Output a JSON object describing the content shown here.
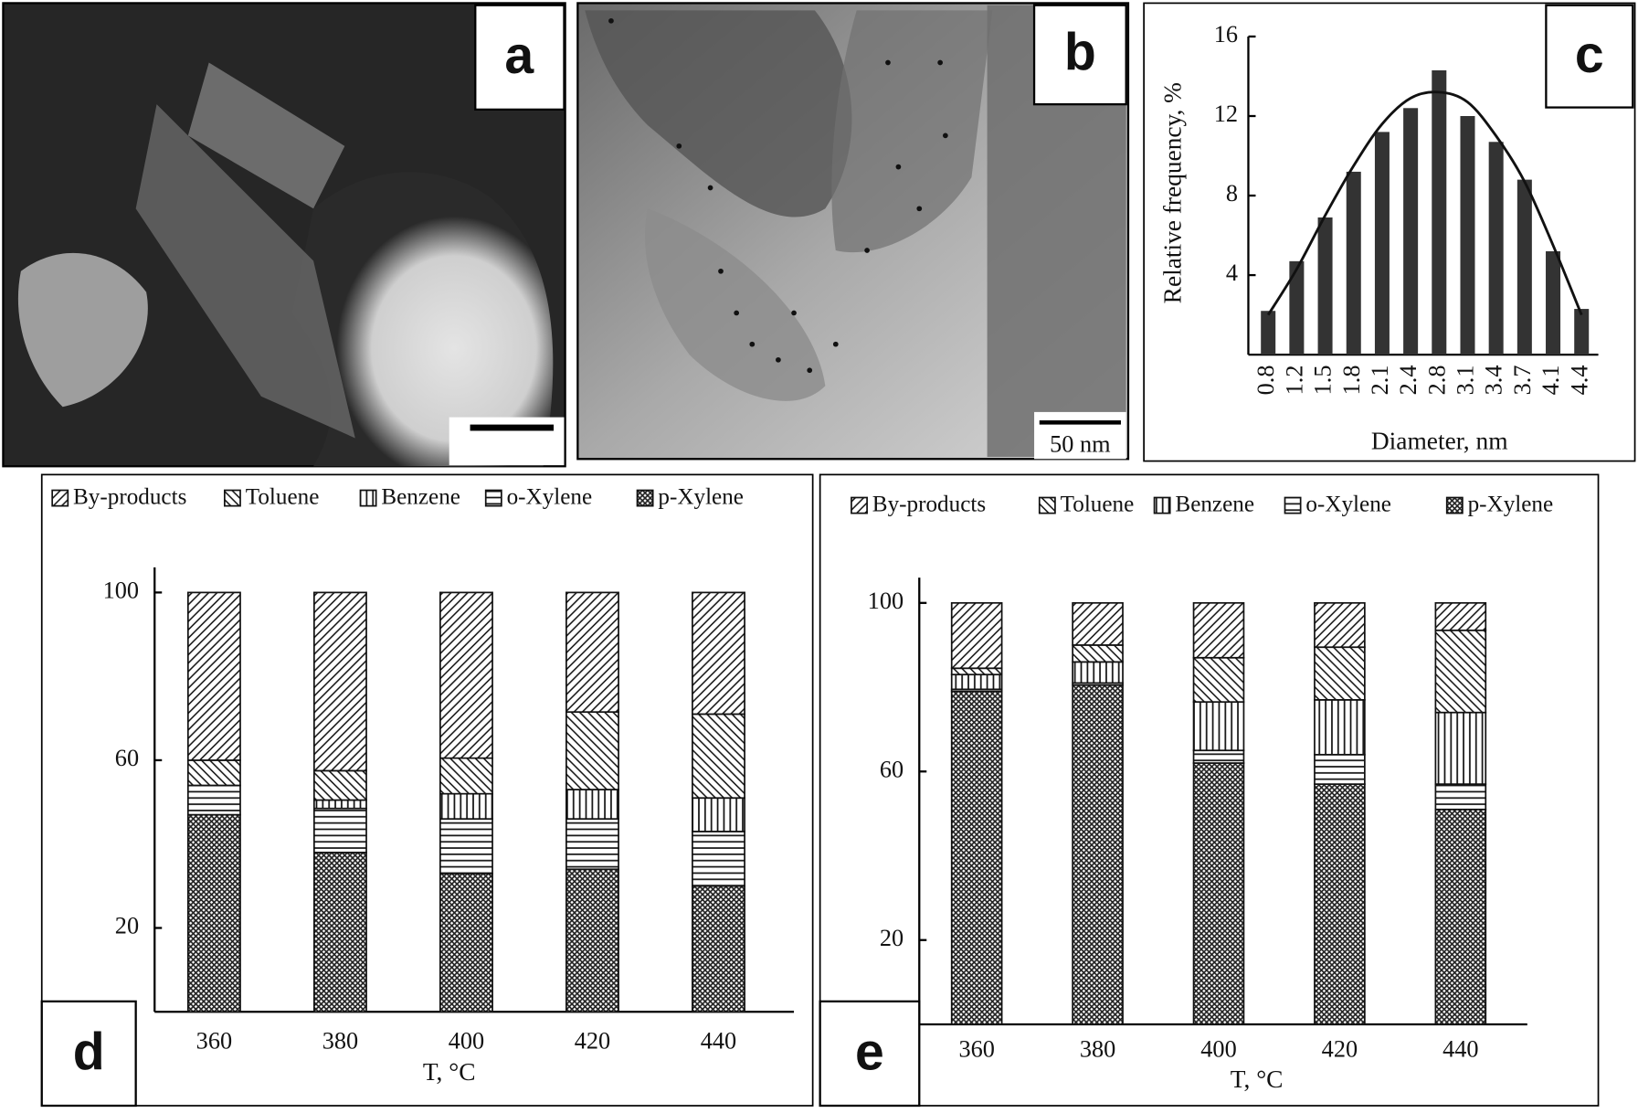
{
  "panels": [
    {
      "label": "a"
    },
    {
      "label": "b",
      "scale_bar": "50 nm"
    }
  ],
  "chart_data": [
    {
      "type": "bar",
      "panel_label": "c",
      "ylabel": "Relative frequency, %",
      "xlabel": "Diameter, nm",
      "categories": [
        "0.8",
        "1.2",
        "1.5",
        "1.8",
        "2.1",
        "2.4",
        "2.8",
        "3.1",
        "3.4",
        "3.7",
        "4.1",
        "4.4"
      ],
      "values": [
        2.2,
        4.7,
        6.9,
        9.2,
        11.2,
        12.4,
        14.3,
        12.0,
        10.7,
        8.8,
        5.2,
        2.3
      ],
      "color": "#333333",
      "fit": {
        "values": [
          2.0,
          4.3,
          7.0,
          9.5,
          11.6,
          12.9,
          13.2,
          12.7,
          11.0,
          8.7,
          5.5,
          2.0
        ],
        "color": "#111111"
      },
      "ylim": [
        0,
        16
      ],
      "yticks": [
        4,
        8,
        12,
        16
      ]
    },
    {
      "type": "stacked_bar",
      "panel_label": "d",
      "xlabel": "T, °C",
      "categories": [
        "360",
        "380",
        "400",
        "420",
        "440"
      ],
      "ylim": [
        0,
        106
      ],
      "yticks": [
        20,
        60,
        100
      ],
      "series": [
        {
          "name": "By-products",
          "pattern": "diagonal",
          "values": [
            40,
            42.5,
            39.5,
            28.5,
            29
          ]
        },
        {
          "name": "Toluene",
          "pattern": "backdiagonal",
          "values": [
            6,
            7,
            8.5,
            18.5,
            20
          ]
        },
        {
          "name": "Benzene",
          "pattern": "vertical",
          "values": [
            0,
            2,
            6,
            7,
            8
          ]
        },
        {
          "name": "o-Xylene",
          "pattern": "horizontal",
          "values": [
            7,
            10.5,
            13,
            12,
            13
          ]
        },
        {
          "name": "p-Xylene",
          "pattern": "crosshatch",
          "values": [
            47,
            38,
            33,
            34,
            30
          ]
        }
      ]
    },
    {
      "type": "stacked_bar",
      "panel_label": "e",
      "xlabel": "T, °C",
      "categories": [
        "360",
        "380",
        "400",
        "420",
        "440"
      ],
      "ylim": [
        0,
        106
      ],
      "yticks": [
        20,
        60,
        100
      ],
      "series": [
        {
          "name": "By-products",
          "pattern": "diagonal",
          "values": [
            15.5,
            10,
            13,
            10.5,
            6.5
          ]
        },
        {
          "name": "Toluene",
          "pattern": "backdiagonal",
          "values": [
            1.5,
            4,
            10.5,
            12.5,
            19.5
          ]
        },
        {
          "name": "Benzene",
          "pattern": "vertical",
          "values": [
            3.5,
            5,
            11.5,
            13,
            17
          ]
        },
        {
          "name": "o-Xylene",
          "pattern": "horizontal",
          "values": [
            0.5,
            0.5,
            3,
            7,
            6
          ]
        },
        {
          "name": "p-Xylene",
          "pattern": "crosshatch",
          "values": [
            79,
            80.5,
            62,
            57,
            51
          ]
        }
      ]
    }
  ]
}
